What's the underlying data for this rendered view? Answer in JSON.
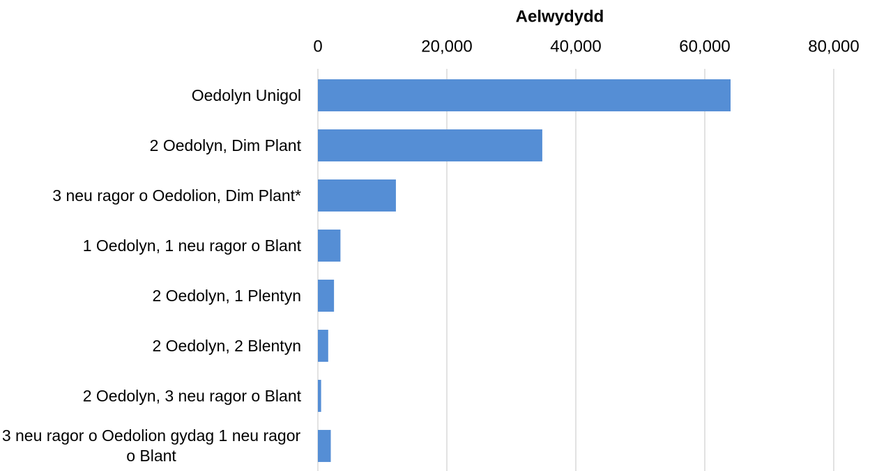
{
  "chart_data": {
    "type": "bar",
    "orientation": "horizontal",
    "title": "Aelwydydd",
    "categories": [
      "Oedolyn Unigol",
      "2 Oedolyn, Dim Plant",
      "3 neu ragor o Oedolion, Dim Plant*",
      "1 Oedolyn, 1 neu ragor o Blant",
      "2 Oedolyn, 1 Plentyn",
      "2 Oedolyn, 2 Blentyn",
      "2 Oedolyn, 3 neu ragor o Blant",
      "3 neu ragor o Oedolion gydag 1 neu ragor o Blant"
    ],
    "values": [
      64000,
      34800,
      12100,
      3500,
      2500,
      1600,
      500,
      2000
    ],
    "color": "#558ed5",
    "xlim": [
      0,
      80000
    ],
    "xticks": [
      0,
      {
        "value": 20000,
        "label": "20,000"
      },
      {
        "value": 40000,
        "label": "40,000"
      },
      {
        "value": 60000,
        "label": "60,000"
      },
      {
        "value": 80000,
        "label": "80,000"
      }
    ],
    "grid": true
  }
}
